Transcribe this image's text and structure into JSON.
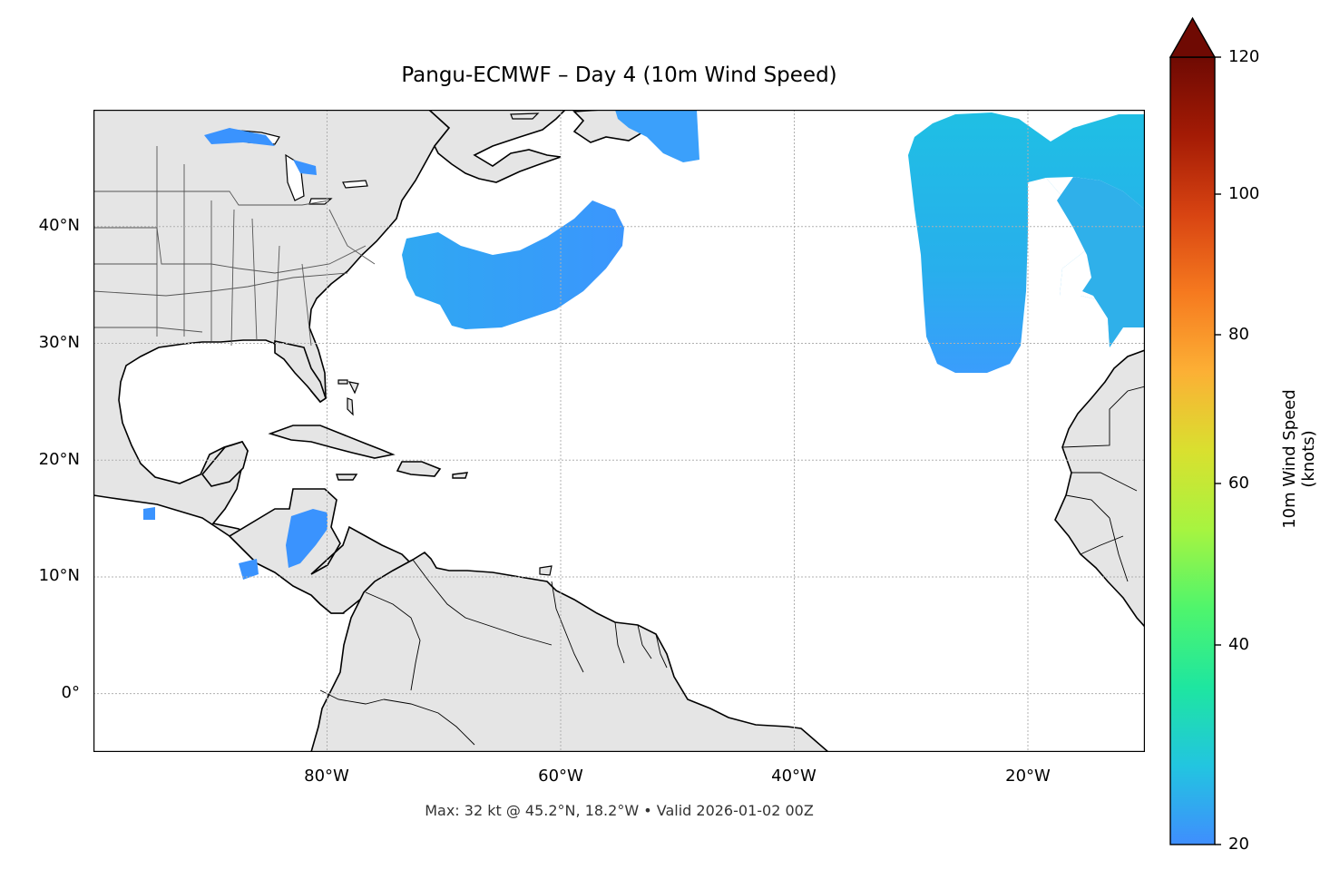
{
  "title": "Pangu-ECMWF – Day 4 (10m Wind Speed)",
  "footer": "Max: 32 kt @ 45.2°N, 18.2°W • Valid 2026-01-02 00Z",
  "map": {
    "extent": {
      "lon_min": -100,
      "lon_max": -10,
      "lat_min": -5,
      "lat_max": 50
    },
    "lat_ticks": [
      {
        "value": 40,
        "label": "40°N"
      },
      {
        "value": 30,
        "label": "30°N"
      },
      {
        "value": 20,
        "label": "20°N"
      },
      {
        "value": 10,
        "label": "10°N"
      },
      {
        "value": 0,
        "label": "0°"
      }
    ],
    "lon_ticks": [
      {
        "value": -80,
        "label": "80°W"
      },
      {
        "value": -60,
        "label": "60°W"
      },
      {
        "value": -40,
        "label": "40°W"
      },
      {
        "value": -20,
        "label": "20°W"
      }
    ],
    "gridlines": true,
    "land_color": "#e5e5e5",
    "ocean_color": "#ffffff",
    "wind_regions": [
      {
        "name": "western-atlantic-swath",
        "color": "#3e9bfb"
      },
      {
        "name": "eastern-atlantic-swath",
        "color": "#22b9e6"
      },
      {
        "name": "nova-scotia-patch",
        "color": "#3a9dfc"
      },
      {
        "name": "caribbean-patch",
        "color": "#3a8ffe"
      }
    ]
  },
  "colorbar": {
    "label": "10m Wind Speed (knots)",
    "min": 20,
    "max": 120,
    "extend": "max",
    "ticks": [
      "20",
      "40",
      "60",
      "80",
      "100",
      "120"
    ],
    "colors": [
      "#3f8efe",
      "#22c5e0",
      "#1ee6a0",
      "#4ff56c",
      "#a7f440",
      "#d9e02f",
      "#fcb035",
      "#f67a1f",
      "#d84412",
      "#a41b05",
      "#6f0a03"
    ]
  }
}
